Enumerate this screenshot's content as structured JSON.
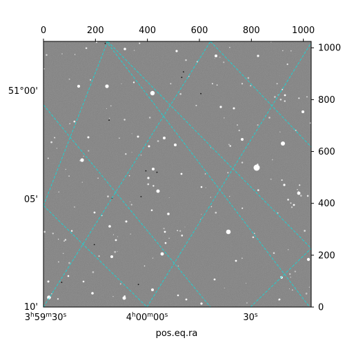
{
  "figure": {
    "xlabel": "pos.eq.ra",
    "top_ticks": [
      "0",
      "200",
      "400",
      "600",
      "800",
      "1000"
    ],
    "right_ticks": [
      "0",
      "200",
      "400",
      "600",
      "800",
      "1000"
    ],
    "dec_ticks": [
      {
        "deg": "51",
        "deg_sym": "°",
        "min": "00",
        "min_sym": "'"
      },
      {
        "deg": "",
        "deg_sym": "",
        "min": "05",
        "min_sym": "'"
      },
      {
        "deg": "",
        "deg_sym": "",
        "min": "10",
        "min_sym": "'"
      }
    ],
    "ra_ticks": [
      {
        "h": "3",
        "h_sym": "h",
        "m": "59",
        "m_sym": "m",
        "s": "30",
        "s_sym": "s"
      },
      {
        "h": "4",
        "h_sym": "h",
        "m": "00",
        "m_sym": "m",
        "s": "00",
        "s_sym": "s"
      },
      {
        "h": "",
        "h_sym": "",
        "m": "",
        "m_sym": "",
        "s": "30",
        "s_sym": "s"
      }
    ],
    "colors": {
      "background": "#ffffff",
      "image_gray": "#7a7a7a",
      "grid": "#20d0d0",
      "axes": "#000000",
      "stars": "#ffffff"
    }
  }
}
